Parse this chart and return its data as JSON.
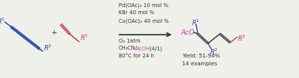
{
  "bg_color": "#f0f0eb",
  "blue": "#2244aa",
  "red": "#cc3333",
  "pink": "#cc44aa",
  "black": "#333333",
  "figsize": [
    3.78,
    0.99
  ],
  "dpi": 100,
  "conditions_above": [
    "Pd(OAc)₂ 10 mol %",
    "KBr 40 mol %",
    "Cu(OAc)₂ 40 mol %"
  ],
  "conditions_below_1": "O₂ 1atm",
  "conditions_below_2a": "CH₃CN/",
  "conditions_below_2b": "AcOH",
  "conditions_below_2c": " (4/1)",
  "conditions_below_3": "80°C for 24 h",
  "yield_text": "Yield: 51-94%",
  "examples_text": "14 examples"
}
